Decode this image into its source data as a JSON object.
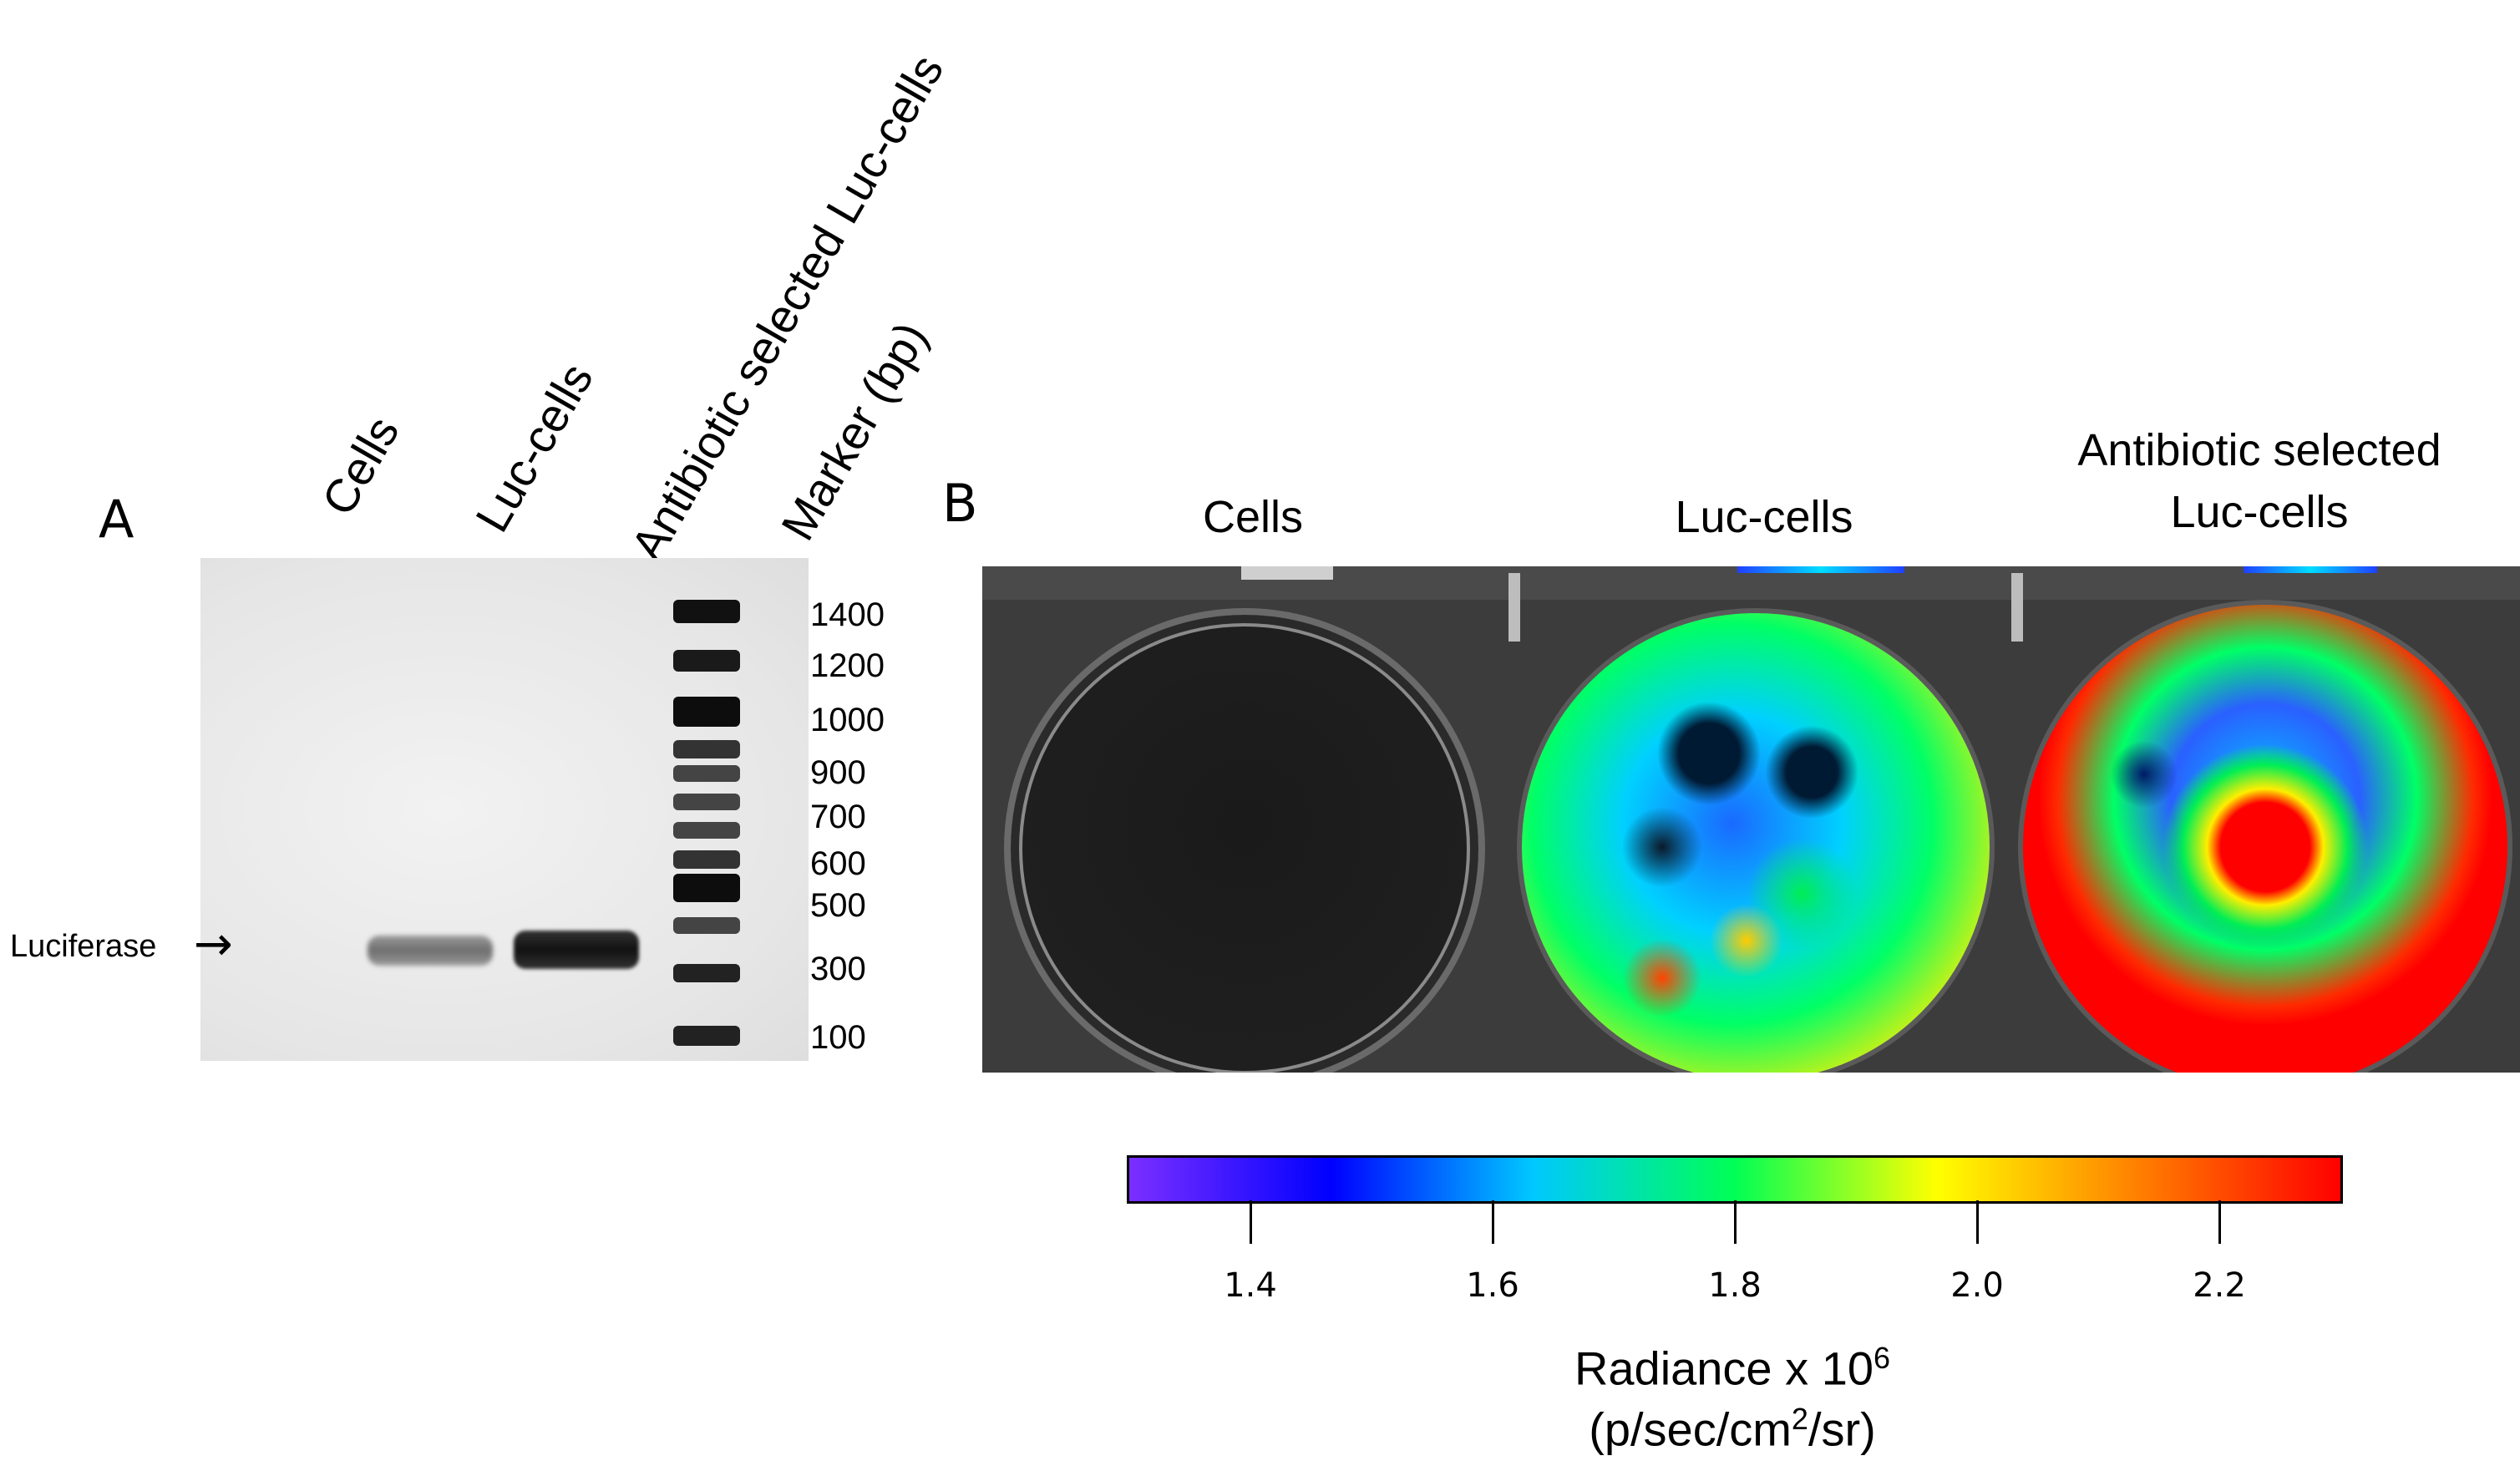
{
  "panel_a": {
    "letter": "A",
    "lane_labels": [
      "Cells",
      "Luc-cells",
      "Antibiotic selected Luc-cells",
      "Marker (bp)"
    ],
    "marker_sizes": [
      "1400",
      "1200",
      "1000",
      "900",
      "700",
      "600",
      "500",
      "300",
      "100"
    ],
    "band_label": "Luciferase",
    "band_arrow": "→"
  },
  "panel_b": {
    "letter": "B",
    "wells": [
      {
        "label_line1": "Cells",
        "label_line2": "",
        "signal": "none"
      },
      {
        "label_line1": "Luc-cells",
        "label_line2": "",
        "signal": "medium"
      },
      {
        "label_line1": "Antibiotic selected",
        "label_line2": "Luc-cells",
        "signal": "high"
      }
    ],
    "colorbar": {
      "min": 1.3,
      "max": 2.3,
      "ticks": [
        "1.4",
        "1.6",
        "1.8",
        "2.0",
        "2.2"
      ],
      "tick_values": [
        1.4,
        1.6,
        1.8,
        2.0,
        2.2
      ],
      "title_text": "Radiance x 10",
      "title_exp": "6",
      "units_pre": "(p/sec/cm",
      "units_exp": "2",
      "units_post": "/sr)",
      "colors": [
        "#7b2fff",
        "#0000ff",
        "#00c8ff",
        "#00ff55",
        "#ffff00",
        "#ff7f00",
        "#ff0000"
      ]
    }
  }
}
